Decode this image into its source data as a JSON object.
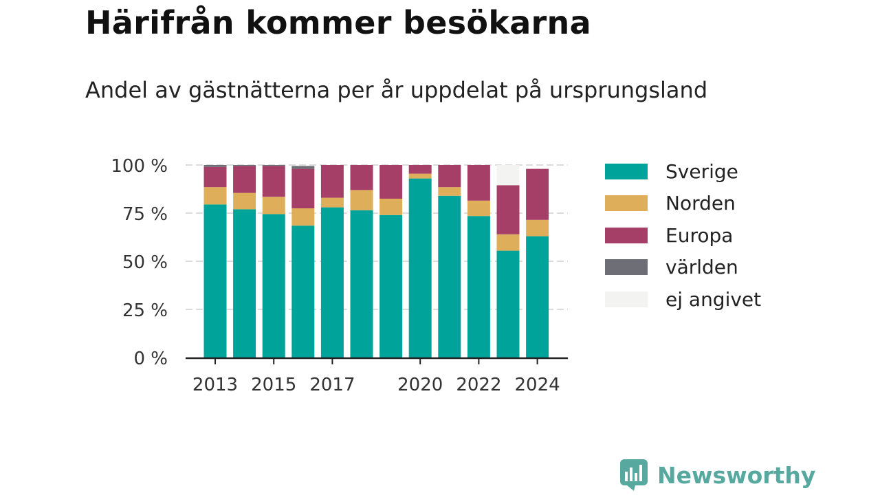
{
  "title": "Härifrån kommer besökarna",
  "subtitle": "Andel av gästnätterna per år uppdelat på ursprungsland",
  "brand": {
    "name": "Newsworthy"
  },
  "chart_data": {
    "type": "bar",
    "stacked": true,
    "categories": [
      "2013",
      "2014",
      "2015",
      "2016",
      "2017",
      "2018",
      "2019",
      "2020",
      "2021",
      "2022",
      "2023",
      "2024"
    ],
    "x_tick_labels": [
      "2013",
      "2015",
      "2017",
      "2020",
      "2022",
      "2024"
    ],
    "y_tick_labels": [
      "0 %",
      "25 %",
      "50 %",
      "75 %",
      "100 %"
    ],
    "ylim": [
      0,
      100
    ],
    "grid": true,
    "legend_position": "right",
    "series": [
      {
        "name": "Sverige",
        "color": "#00a39a",
        "values": [
          79.5,
          77,
          74.5,
          68.5,
          78,
          76.5,
          74,
          93,
          84,
          73.5,
          55.5,
          63
        ]
      },
      {
        "name": "Norden",
        "color": "#dfae5a",
        "values": [
          9,
          8.5,
          9,
          9,
          5,
          10.5,
          8.5,
          2.5,
          4.5,
          8,
          8.5,
          8.5
        ]
      },
      {
        "name": "Europa",
        "color": "#a53f67",
        "values": [
          10.5,
          14,
          16,
          20.5,
          17,
          13,
          17.5,
          4.5,
          11.5,
          18.5,
          25.5,
          26.5
        ]
      },
      {
        "name": "världen",
        "color": "#6d6e76",
        "values": [
          1,
          0.5,
          0.5,
          1.5,
          0,
          0,
          0,
          0,
          0,
          0,
          0,
          0
        ]
      },
      {
        "name": "ej angivet",
        "color": "#f3f3f1",
        "values": [
          0,
          0,
          0,
          0,
          0,
          0,
          0,
          0,
          0,
          0,
          10.5,
          0
        ]
      }
    ]
  }
}
